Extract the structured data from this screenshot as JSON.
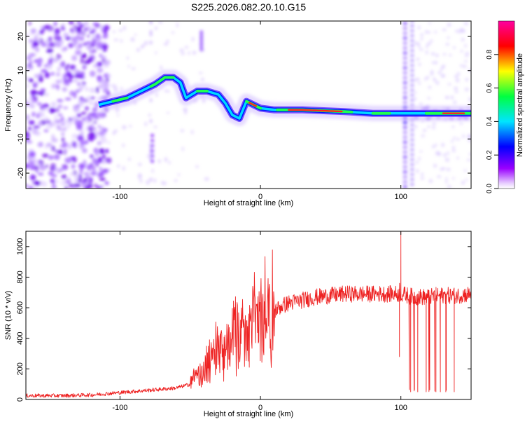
{
  "chart_data": [
    {
      "type": "heatmap",
      "title": "S225.2026.082.20.10.G15",
      "xlabel": "Height of straight line (km)",
      "ylabel": "Frequency (Hz)",
      "xlim": [
        -167,
        150
      ],
      "ylim": [
        -24.5,
        24.5
      ],
      "xticks": [
        -100,
        0,
        100
      ],
      "yticks": [
        -20,
        -10,
        0,
        10,
        20
      ],
      "colorbar": {
        "label": "Normalized spectral amplitude",
        "range": [
          0.0,
          1.0
        ],
        "ticks": [
          0.0,
          0.2,
          0.4,
          0.6,
          0.8
        ],
        "tick_labels": [
          "0.0",
          "0.2",
          "0.4",
          "0.6",
          "0.8"
        ],
        "colors": [
          "#ffffff",
          "#b000ff",
          "#0000ff",
          "#00ffff",
          "#00ff00",
          "#ffff00",
          "#ff0000",
          "#ff00a0"
        ]
      },
      "ridge": [
        {
          "x": -115,
          "y": 0.0
        },
        {
          "x": -105,
          "y": 1.0
        },
        {
          "x": -95,
          "y": 2.0
        },
        {
          "x": -85,
          "y": 4.0
        },
        {
          "x": -75,
          "y": 6.0
        },
        {
          "x": -68,
          "y": 8.0
        },
        {
          "x": -62,
          "y": 8.0
        },
        {
          "x": -57,
          "y": 6.5
        },
        {
          "x": -53,
          "y": 2.0
        },
        {
          "x": -45,
          "y": 4.0
        },
        {
          "x": -38,
          "y": 4.0
        },
        {
          "x": -30,
          "y": 3.0
        },
        {
          "x": -25,
          "y": 0.5
        },
        {
          "x": -20,
          "y": -3.0
        },
        {
          "x": -15,
          "y": -4.0
        },
        {
          "x": -10,
          "y": 1.0
        },
        {
          "x": -5,
          "y": 0.0
        },
        {
          "x": 0,
          "y": -1.0
        },
        {
          "x": 10,
          "y": -1.5
        },
        {
          "x": 30,
          "y": -1.5
        },
        {
          "x": 60,
          "y": -2.0
        },
        {
          "x": 80,
          "y": -2.5
        },
        {
          "x": 95,
          "y": -2.5
        },
        {
          "x": 110,
          "y": -2.5
        },
        {
          "x": 130,
          "y": -2.5
        },
        {
          "x": 150,
          "y": -2.5
        }
      ]
    },
    {
      "type": "line",
      "xlabel": "Height of straight line (km)",
      "ylabel": "SNR (10 * v/v)",
      "xlim": [
        -167,
        150
      ],
      "ylim": [
        0,
        1100
      ],
      "xticks": [
        -100,
        0,
        100
      ],
      "yticks": [
        0,
        200,
        400,
        600,
        800,
        1000
      ],
      "line_color": "#ee2222",
      "series": [
        {
          "x": [
            -167,
            -140,
            -120,
            -100,
            -80,
            -60,
            -50,
            -45,
            -40,
            -35,
            -30,
            -25,
            -20,
            -15,
            -10,
            -5,
            0,
            5,
            10,
            15,
            20,
            30,
            40,
            50,
            60,
            70,
            80,
            90,
            100,
            105,
            110,
            115,
            120,
            125,
            130,
            135,
            140,
            150
          ],
          "y": [
            25,
            25,
            30,
            45,
            60,
            75,
            100,
            140,
            200,
            250,
            300,
            340,
            370,
            400,
            420,
            460,
            500,
            540,
            580,
            610,
            630,
            650,
            670,
            680,
            690,
            690,
            690,
            690,
            690,
            680,
            670,
            670,
            670,
            680,
            680,
            680,
            680,
            690
          ]
        }
      ],
      "annotations": [
        {
          "label": "spike",
          "x": 100,
          "y": 1100
        },
        {
          "label": "dropout",
          "x": 99,
          "y": 280
        },
        {
          "label": "dropouts",
          "x": [
            107,
            112,
            118,
            125,
            132,
            138
          ],
          "y": 50
        }
      ]
    }
  ]
}
